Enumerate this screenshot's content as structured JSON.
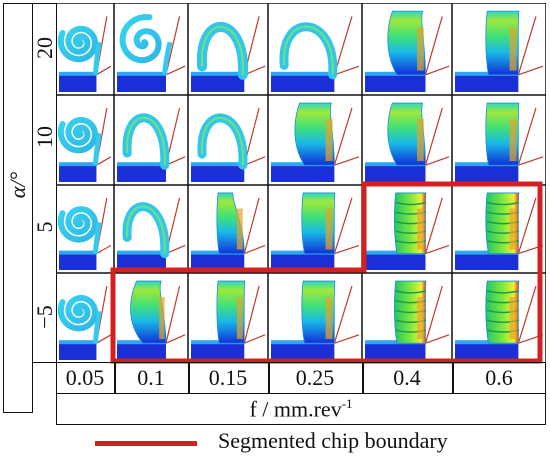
{
  "figure": {
    "y_axis_label": "α/°",
    "x_axis_label_main": "f / mm.rev",
    "x_axis_label_sup": "-1",
    "row_labels": [
      "20",
      "10",
      "5",
      "−5"
    ],
    "col_labels": [
      "0.05",
      "0.1",
      "0.15",
      "0.25",
      "0.4",
      "0.6"
    ],
    "legend_label": "Segmented chip boundary",
    "boundary_color": "#d42020",
    "grid": [
      [
        "spiral-tight",
        "spiral-open",
        "curl-big",
        "curl-arch",
        "chip-bent",
        "chip-straight"
      ],
      [
        "spiral-tight",
        "curl-open",
        "curl-arc",
        "chip-bent",
        "chip-bent",
        "chip-straight"
      ],
      [
        "spiral-tight",
        "curl-short",
        "chip-thin",
        "chip-straight",
        "chip-segmented",
        "chip-segmented"
      ],
      [
        "spiral-tight",
        "chip-curl",
        "chip-straight",
        "chip-straight",
        "chip-segmented",
        "chip-segmented"
      ]
    ]
  }
}
